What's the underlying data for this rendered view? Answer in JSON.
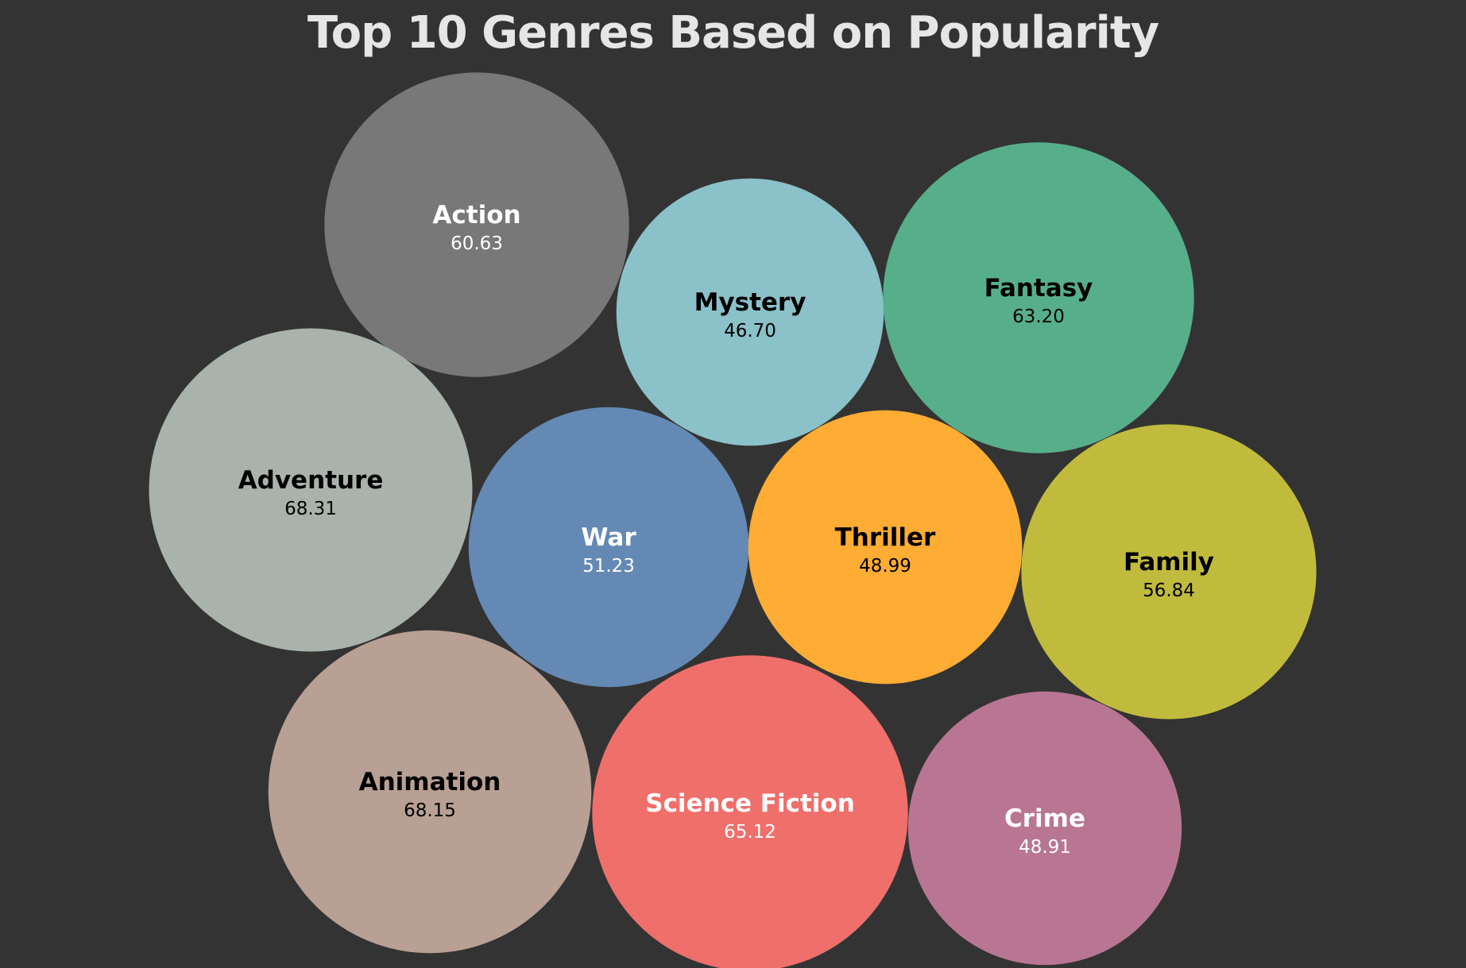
{
  "chart_data": {
    "type": "bubble",
    "title": "Top 10 Genres Based on Popularity",
    "value_format": "2 decimals",
    "series": [
      {
        "name": "Action",
        "value": 60.63,
        "color": "#787878",
        "label_color": "#ffffff"
      },
      {
        "name": "Mystery",
        "value": 46.7,
        "color": "#8bc1c8",
        "label_color": "#000000"
      },
      {
        "name": "Fantasy",
        "value": 63.2,
        "color": "#57ae8b",
        "label_color": "#000000"
      },
      {
        "name": "Adventure",
        "value": 68.31,
        "color": "#a9b3ac",
        "label_color": "#000000"
      },
      {
        "name": "War",
        "value": 51.23,
        "color": "#6489b4",
        "label_color": "#ffffff"
      },
      {
        "name": "Thriller",
        "value": 48.99,
        "color": "#fdac34",
        "label_color": "#000000"
      },
      {
        "name": "Family",
        "value": 56.84,
        "color": "#c1bb3d",
        "label_color": "#000000"
      },
      {
        "name": "Animation",
        "value": 68.15,
        "color": "#b9a094",
        "label_color": "#000000"
      },
      {
        "name": "Science Fiction",
        "value": 65.12,
        "color": "#ef6f6b",
        "label_color": "#ffffff"
      },
      {
        "name": "Crime",
        "value": 48.91,
        "color": "#b97692",
        "label_color": "#ffffff"
      }
    ]
  }
}
